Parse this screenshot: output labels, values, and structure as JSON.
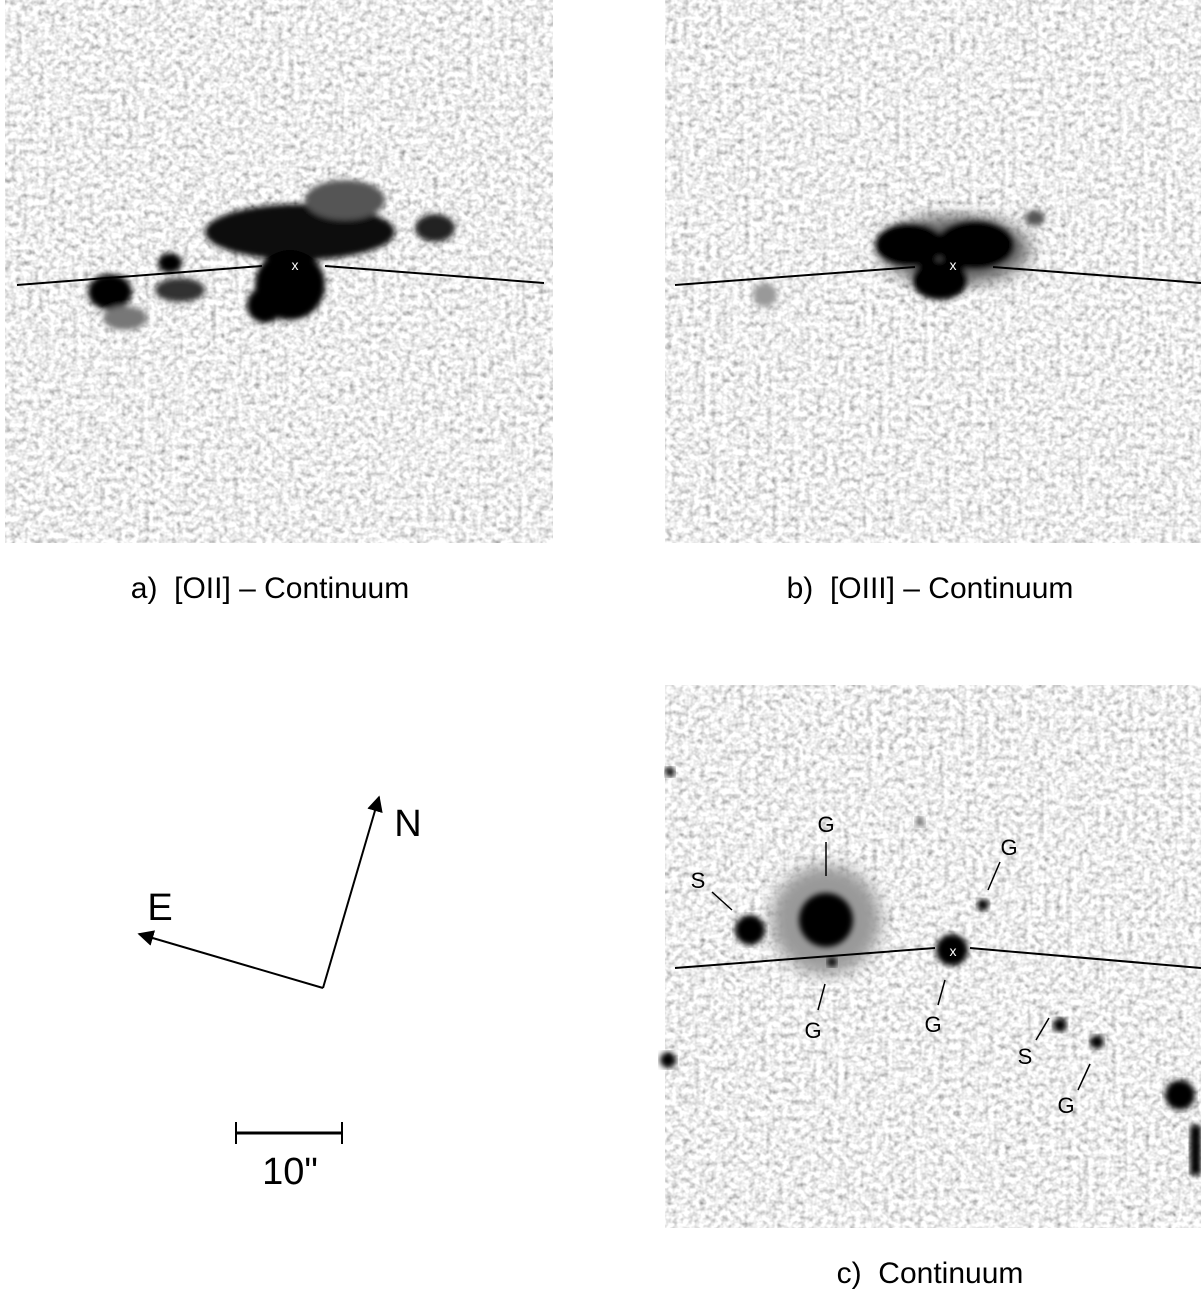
{
  "panels": [
    {
      "caption": "a)  [OII] – Continuum",
      "center_label": "x"
    },
    {
      "caption": "b)  [OIII] – Continuum",
      "center_label": "x"
    },
    {
      "caption": "c)  Continuum",
      "center_label": "x",
      "object_labels": [
        "S",
        "G",
        "G",
        "G",
        "G",
        "S",
        "G"
      ]
    }
  ],
  "compass": {
    "north": "N",
    "east": "E"
  },
  "scale_bar": {
    "label": "10\""
  }
}
